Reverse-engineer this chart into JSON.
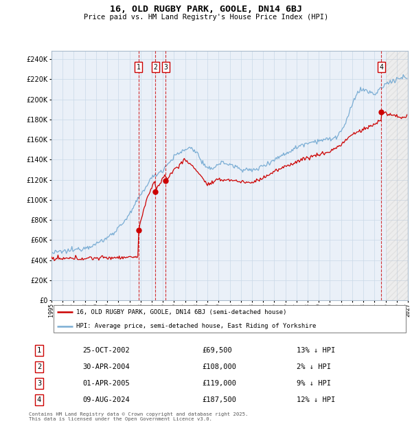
{
  "title": "16, OLD RUGBY PARK, GOOLE, DN14 6BJ",
  "subtitle": "Price paid vs. HM Land Registry's House Price Index (HPI)",
  "xlim": [
    1995,
    2027
  ],
  "ylim": [
    0,
    248000
  ],
  "yticks": [
    0,
    20000,
    40000,
    60000,
    80000,
    100000,
    120000,
    140000,
    160000,
    180000,
    200000,
    220000,
    240000
  ],
  "sale_decimal": [
    2002.8137,
    2004.3288,
    2005.2493,
    2024.6055
  ],
  "sale_prices": [
    69500,
    108000,
    119000,
    187500
  ],
  "sale_labels": [
    "1",
    "2",
    "3",
    "4"
  ],
  "legend_property": "16, OLD RUGBY PARK, GOOLE, DN14 6BJ (semi-detached house)",
  "legend_hpi": "HPI: Average price, semi-detached house, East Riding of Yorkshire",
  "table_rows": [
    {
      "num": "1",
      "date": "25-OCT-2002",
      "price": "£69,500",
      "pct": "13% ↓ HPI"
    },
    {
      "num": "2",
      "date": "30-APR-2004",
      "price": "£108,000",
      "pct": "2% ↓ HPI"
    },
    {
      "num": "3",
      "date": "01-APR-2005",
      "price": "£119,000",
      "pct": "9% ↓ HPI"
    },
    {
      "num": "4",
      "date": "09-AUG-2024",
      "price": "£187,500",
      "pct": "12% ↓ HPI"
    }
  ],
  "footer": "Contains HM Land Registry data © Crown copyright and database right 2025.\nThis data is licensed under the Open Government Licence v3.0.",
  "property_color": "#cc0000",
  "hpi_color": "#7aadd4",
  "background_color": "#ffffff",
  "grid_color": "#c8d8e8",
  "vline_color": "#cc0000",
  "hatch_color": "#cccccc",
  "hpi_anchors_t": [
    1995.0,
    1996.0,
    1997.0,
    1998.0,
    1999.0,
    2000.0,
    2001.0,
    2002.0,
    2003.0,
    2004.0,
    2005.0,
    2006.0,
    2007.0,
    2007.5,
    2008.0,
    2008.5,
    2009.0,
    2009.5,
    2010.0,
    2010.5,
    2011.0,
    2011.5,
    2012.0,
    2012.5,
    2013.0,
    2013.5,
    2014.0,
    2014.5,
    2015.0,
    2015.5,
    2016.0,
    2016.5,
    2017.0,
    2017.5,
    2018.0,
    2018.5,
    2019.0,
    2019.5,
    2020.0,
    2020.5,
    2021.0,
    2021.5,
    2022.0,
    2022.5,
    2023.0,
    2023.5,
    2024.0,
    2024.5,
    2025.0,
    2025.5,
    2026.0,
    2026.5
  ],
  "hpi_anchors_v": [
    47000,
    48500,
    50000,
    52500,
    56000,
    62000,
    72000,
    85000,
    105000,
    122000,
    130000,
    143000,
    150000,
    152000,
    148000,
    138000,
    130000,
    132000,
    136000,
    137000,
    135000,
    133000,
    131000,
    130000,
    129000,
    131000,
    134000,
    137000,
    140000,
    143000,
    146000,
    149000,
    152000,
    155000,
    157000,
    158000,
    159000,
    160000,
    160000,
    162000,
    168000,
    178000,
    195000,
    208000,
    210000,
    207000,
    205000,
    210000,
    215000,
    218000,
    220000,
    222000
  ],
  "prop_anchors_t": [
    1995.0,
    2002.0,
    2002.81,
    2002.83,
    2003.5,
    2004.0,
    2004.32,
    2004.34,
    2005.0,
    2005.24,
    2005.26,
    2006.0,
    2007.0,
    2008.0,
    2009.0,
    2009.5,
    2010.0,
    2011.0,
    2012.0,
    2013.0,
    2014.0,
    2015.0,
    2016.0,
    2017.0,
    2018.0,
    2019.0,
    2020.0,
    2021.0,
    2022.0,
    2023.0,
    2024.0,
    2024.59,
    2024.61,
    2025.0,
    2026.0,
    2026.5
  ],
  "prop_anchors_v": [
    41000,
    43000,
    43500,
    69500,
    100000,
    112000,
    120000,
    108000,
    122000,
    127000,
    119000,
    130000,
    140000,
    130000,
    115000,
    117000,
    120000,
    120000,
    118000,
    117000,
    122000,
    128000,
    133000,
    138000,
    142000,
    145000,
    148000,
    155000,
    165000,
    170000,
    175000,
    180000,
    187500,
    186000,
    183000,
    182000
  ]
}
